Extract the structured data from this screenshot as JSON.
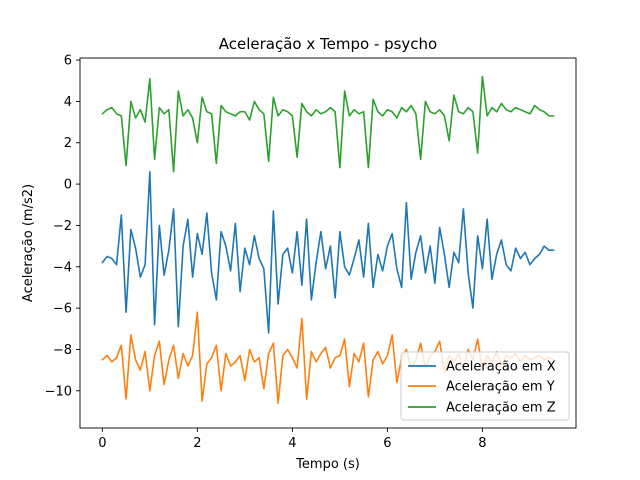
{
  "chart_data": {
    "type": "line",
    "title": "Aceleração x Tempo - psycho",
    "xlabel": "Tempo (s)",
    "ylabel": "Aceleração (m/s2)",
    "xlim": [
      -0.47,
      9.97
    ],
    "ylim": [
      -11.8,
      6.1
    ],
    "xticks": [
      0,
      2,
      4,
      6,
      8
    ],
    "yticks": [
      -10,
      -8,
      -6,
      -4,
      -2,
      0,
      2,
      4,
      6
    ],
    "grid": false,
    "legend_position": "lower-right",
    "x": [
      0.0,
      0.1,
      0.2,
      0.3,
      0.4,
      0.5,
      0.6,
      0.7,
      0.8,
      0.9,
      1.0,
      1.1,
      1.2,
      1.3,
      1.4,
      1.5,
      1.6,
      1.7,
      1.8,
      1.9,
      2.0,
      2.1,
      2.2,
      2.3,
      2.4,
      2.5,
      2.6,
      2.7,
      2.8,
      2.9,
      3.0,
      3.1,
      3.2,
      3.3,
      3.4,
      3.5,
      3.6,
      3.7,
      3.8,
      3.9,
      4.0,
      4.1,
      4.2,
      4.3,
      4.4,
      4.5,
      4.6,
      4.7,
      4.8,
      4.9,
      5.0,
      5.1,
      5.2,
      5.3,
      5.4,
      5.5,
      5.6,
      5.7,
      5.8,
      5.9,
      6.0,
      6.1,
      6.2,
      6.3,
      6.4,
      6.5,
      6.6,
      6.7,
      6.8,
      6.9,
      7.0,
      7.1,
      7.2,
      7.3,
      7.4,
      7.5,
      7.6,
      7.7,
      7.8,
      7.9,
      8.0,
      8.1,
      8.2,
      8.3,
      8.4,
      8.5,
      8.6,
      8.7,
      8.8,
      8.9,
      9.0,
      9.1,
      9.2,
      9.3,
      9.4,
      9.5
    ],
    "series": [
      {
        "name": "Aceleração em X",
        "color": "#1f77b4",
        "values": [
          -3.8,
          -3.5,
          -3.6,
          -3.9,
          -1.5,
          -6.2,
          -2.2,
          -3.1,
          -4.5,
          -3.9,
          0.6,
          -6.8,
          -2.0,
          -4.4,
          -3.2,
          -1.2,
          -6.9,
          -3.0,
          -1.7,
          -4.5,
          -2.4,
          -3.4,
          -1.4,
          -4.3,
          -5.6,
          -2.3,
          -3.0,
          -4.2,
          -1.9,
          -5.2,
          -3.1,
          -3.9,
          -2.5,
          -3.6,
          -4.1,
          -7.2,
          -1.3,
          -5.8,
          -3.4,
          -3.1,
          -4.3,
          -2.3,
          -4.9,
          -1.7,
          -5.6,
          -3.8,
          -2.3,
          -4.1,
          -3.0,
          -5.5,
          -2.3,
          -4.0,
          -4.4,
          -3.6,
          -2.7,
          -4.5,
          -1.9,
          -5.0,
          -3.4,
          -4.2,
          -3.0,
          -2.4,
          -4.1,
          -5.0,
          -0.9,
          -4.6,
          -3.3,
          -2.5,
          -4.3,
          -3.0,
          -4.8,
          -2.1,
          -3.4,
          -5.0,
          -3.3,
          -3.8,
          -1.2,
          -4.3,
          -6.0,
          -2.5,
          -4.1,
          -1.7,
          -4.6,
          -3.4,
          -2.7,
          -3.9,
          -4.2,
          -3.1,
          -3.6,
          -3.3,
          -3.9,
          -3.6,
          -3.4,
          -3.0,
          -3.2,
          -3.2
        ]
      },
      {
        "name": "Aceleração em Y",
        "color": "#ff7f0e",
        "values": [
          -8.5,
          -8.3,
          -8.6,
          -8.4,
          -7.8,
          -10.4,
          -7.3,
          -8.5,
          -9.0,
          -8.1,
          -10.0,
          -8.3,
          -7.6,
          -9.7,
          -8.5,
          -7.8,
          -9.4,
          -8.2,
          -8.8,
          -8.3,
          -6.2,
          -10.5,
          -8.7,
          -8.4,
          -7.8,
          -10.0,
          -8.2,
          -8.8,
          -8.6,
          -8.3,
          -9.5,
          -8.0,
          -8.6,
          -8.4,
          -9.9,
          -8.2,
          -7.7,
          -10.6,
          -8.3,
          -8.0,
          -8.4,
          -8.9,
          -6.5,
          -10.4,
          -8.1,
          -8.6,
          -8.2,
          -7.9,
          -8.9,
          -8.4,
          -8.3,
          -7.5,
          -9.8,
          -8.2,
          -8.6,
          -7.7,
          -10.3,
          -8.5,
          -8.1,
          -8.7,
          -8.3,
          -7.3,
          -9.6,
          -8.4,
          -8.0,
          -8.9,
          -8.5,
          -7.7,
          -8.9,
          -8.3,
          -8.1,
          -7.6,
          -9.1,
          -8.3,
          -8.6,
          -8.2,
          -8.9,
          -8.0,
          -8.5,
          -7.5,
          -9.0,
          -8.3,
          -8.6,
          -8.1,
          -8.8,
          -8.3,
          -8.4,
          -8.2,
          -8.6,
          -8.3,
          -8.5,
          -8.4,
          -8.3,
          -8.5,
          -8.4,
          -8.5
        ]
      },
      {
        "name": "Aceleração em Z",
        "color": "#2ca02c",
        "values": [
          3.4,
          3.6,
          3.7,
          3.4,
          3.3,
          0.9,
          4.0,
          3.2,
          3.6,
          3.0,
          5.1,
          1.2,
          3.7,
          3.4,
          3.6,
          0.6,
          4.5,
          3.3,
          3.6,
          3.2,
          2.0,
          4.2,
          3.5,
          3.4,
          1.0,
          3.8,
          3.5,
          3.4,
          3.3,
          3.5,
          3.5,
          3.1,
          4.0,
          3.6,
          3.4,
          1.1,
          4.2,
          3.3,
          3.6,
          3.5,
          3.3,
          1.3,
          3.9,
          3.5,
          3.3,
          3.6,
          3.4,
          3.5,
          3.7,
          3.5,
          0.8,
          4.5,
          3.3,
          3.6,
          3.4,
          3.5,
          0.8,
          4.1,
          3.5,
          3.3,
          3.6,
          3.5,
          3.2,
          3.7,
          3.5,
          3.8,
          3.4,
          1.2,
          4.0,
          3.5,
          3.4,
          3.6,
          3.3,
          2.1,
          4.3,
          3.5,
          3.4,
          3.7,
          3.5,
          1.5,
          5.2,
          3.3,
          3.7,
          3.5,
          3.9,
          3.6,
          3.5,
          3.7,
          3.6,
          3.5,
          3.4,
          3.8,
          3.6,
          3.5,
          3.3,
          3.3
        ]
      }
    ]
  }
}
